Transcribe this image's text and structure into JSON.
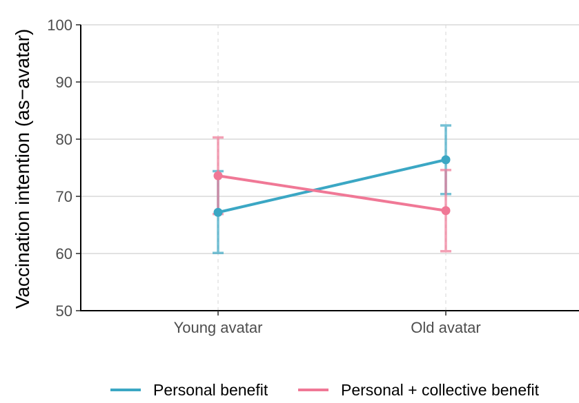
{
  "chart_data": {
    "type": "line",
    "title": "",
    "xlabel": "",
    "ylabel": "Vaccination intention (as−avatar)",
    "categories": [
      "Young avatar",
      "Old avatar"
    ],
    "ylim": [
      50,
      100
    ],
    "yticks": [
      50,
      60,
      70,
      80,
      90,
      100
    ],
    "grid": "horizontal major lines; dashed vertical lines at categories",
    "legend_position": "bottom",
    "series": [
      {
        "name": "Personal benefit",
        "color": "#3ba7c4",
        "values": [
          67.2,
          76.4
        ],
        "error_low": [
          60.1,
          70.4
        ],
        "error_high": [
          74.4,
          82.4
        ]
      },
      {
        "name": "Personal + collective benefit",
        "color": "#f07896",
        "values": [
          73.6,
          67.5
        ],
        "error_low": [
          66.9,
          60.4
        ],
        "error_high": [
          80.3,
          74.6
        ]
      }
    ]
  }
}
